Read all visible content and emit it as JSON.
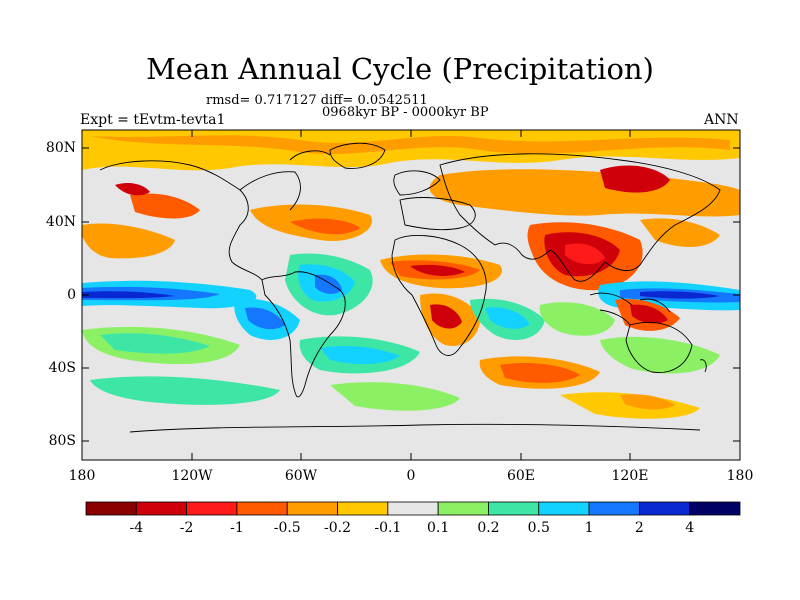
{
  "title": "Mean Annual Cycle (Precipitation)",
  "stats_line": "rmsd= 0.717127 diff= 0.0542511",
  "period_line": "0968kyr BP - 0000kyr BP",
  "experiment_label": "Expt = tEvtm-tevta1",
  "season_label": "ANN",
  "lat_ticks": [
    "80N",
    "40N",
    "0",
    "40S",
    "80S"
  ],
  "lon_ticks": [
    "180",
    "120W",
    "60W",
    "0",
    "60E",
    "120E",
    "180"
  ],
  "colorbar": {
    "colors": [
      "#8b0000",
      "#d0000a",
      "#ff1a1a",
      "#ff5a00",
      "#ff9d00",
      "#ffc800",
      "#e6e6e6",
      "#8cf064",
      "#3ee6a6",
      "#14d2ff",
      "#1478ff",
      "#0a28d2",
      "#000064"
    ],
    "labels": [
      "-4",
      "-2",
      "-1",
      "-0.5",
      "-0.2",
      "-0.1",
      "0.1",
      "0.2",
      "0.5",
      "1",
      "2",
      "4"
    ]
  }
}
